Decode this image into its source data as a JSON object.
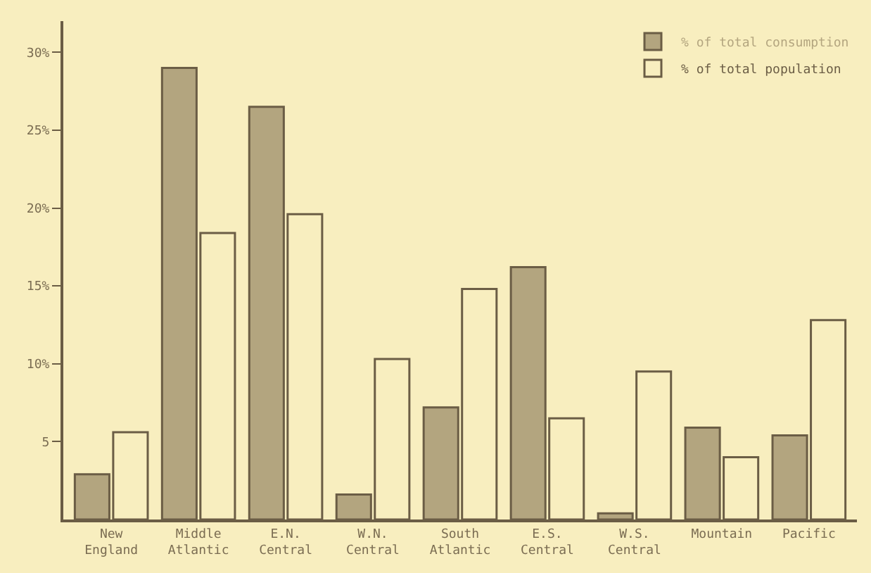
{
  "chart_data": {
    "type": "bar",
    "categories": [
      "New England",
      "Middle Atlantic",
      "E.N. Central",
      "W.N. Central",
      "South Atlantic",
      "E.S. Central",
      "W.S. Central",
      "Mountain",
      "Pacific"
    ],
    "series": [
      {
        "name": "% of total consumption",
        "color": "#b3a57f",
        "values": [
          2.9,
          29.0,
          26.5,
          1.6,
          7.2,
          16.2,
          0.4,
          5.9,
          5.4
        ]
      },
      {
        "name": "% of total population",
        "color": "#f8eebf",
        "values": [
          5.6,
          18.4,
          19.6,
          10.3,
          14.8,
          6.5,
          9.5,
          4.0,
          12.8
        ]
      }
    ],
    "ylim": [
      0,
      32
    ],
    "yticks": [
      {
        "value": 5,
        "label": "5"
      },
      {
        "value": 10,
        "label": "10%"
      },
      {
        "value": 15,
        "label": "15%"
      },
      {
        "value": 20,
        "label": "20%"
      },
      {
        "value": 25,
        "label": "25%"
      },
      {
        "value": 30,
        "label": "30%"
      }
    ],
    "grid": false,
    "legend": "top right"
  }
}
